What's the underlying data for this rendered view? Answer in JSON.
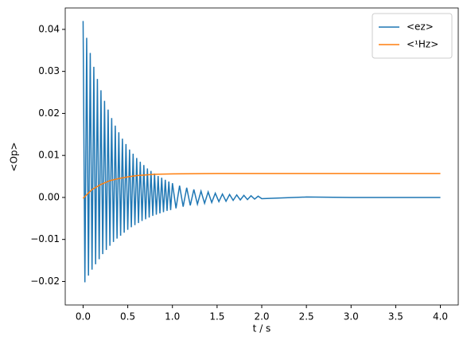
{
  "chart_data": {
    "type": "line",
    "xlabel": "t / s",
    "ylabel": "<Op>",
    "xlim": [
      -0.2,
      4.2
    ],
    "ylim": [
      -0.0256,
      0.0451
    ],
    "xticks": [
      {
        "value": 0,
        "label": "0.0"
      },
      {
        "value": 0.5,
        "label": "0.5"
      },
      {
        "value": 1,
        "label": "1.0"
      },
      {
        "value": 1.5,
        "label": "1.5"
      },
      {
        "value": 2,
        "label": "2.0"
      },
      {
        "value": 2.5,
        "label": "2.5"
      },
      {
        "value": 3,
        "label": "3.0"
      },
      {
        "value": 3.5,
        "label": "3.5"
      },
      {
        "value": 4,
        "label": "4.0"
      }
    ],
    "yticks": [
      {
        "value": -0.02,
        "label": "−0.02"
      },
      {
        "value": -0.01,
        "label": "−0.01"
      },
      {
        "value": 0,
        "label": "0.00"
      },
      {
        "value": 0.01,
        "label": "0.01"
      },
      {
        "value": 0.02,
        "label": "0.02"
      },
      {
        "value": 0.03,
        "label": "0.03"
      },
      {
        "value": 0.04,
        "label": "0.04"
      }
    ],
    "grid": false,
    "legend": "upper right",
    "series": [
      {
        "name": "<ez>",
        "color": "#1f77b4",
        "x": [
          0,
          0.02,
          0.04,
          0.06,
          0.08,
          0.1,
          0.12,
          0.14,
          0.16,
          0.18,
          0.2,
          0.22,
          0.24,
          0.26,
          0.28,
          0.3,
          0.32,
          0.34,
          0.36,
          0.38,
          0.4,
          0.42,
          0.44,
          0.46,
          0.48,
          0.5,
          0.52,
          0.54,
          0.56,
          0.58,
          0.6,
          0.62,
          0.64,
          0.66,
          0.68,
          0.7,
          0.72,
          0.74,
          0.76,
          0.78,
          0.8,
          0.82,
          0.84,
          0.86,
          0.88,
          0.9,
          0.92,
          0.94,
          0.96,
          0.98,
          1.0,
          1.04,
          1.08,
          1.12,
          1.16,
          1.2,
          1.24,
          1.28,
          1.32,
          1.36,
          1.4,
          1.44,
          1.48,
          1.52,
          1.56,
          1.6,
          1.64,
          1.68,
          1.72,
          1.76,
          1.8,
          1.84,
          1.88,
          1.92,
          1.96,
          2.0,
          2.5,
          3.0,
          4.0
        ],
        "values": [
          0.042,
          -0.0202,
          0.038,
          -0.0186,
          0.0344,
          -0.0172,
          0.0311,
          -0.0159,
          0.0282,
          -0.0147,
          0.0255,
          -0.0135,
          0.023,
          -0.0125,
          0.0209,
          -0.0115,
          0.0189,
          -0.0106,
          0.0171,
          -0.0098,
          0.0155,
          -0.0091,
          0.014,
          -0.0084,
          0.0127,
          -0.0077,
          0.0114,
          -0.0071,
          0.0104,
          -0.0066,
          0.0094,
          -0.0061,
          0.0085,
          -0.0056,
          0.0077,
          -0.0052,
          0.0069,
          -0.0048,
          0.0063,
          -0.0044,
          0.0057,
          -0.0041,
          0.0051,
          -0.0038,
          0.0047,
          -0.0035,
          0.0042,
          -0.0032,
          0.0038,
          -0.003,
          0.0034,
          -0.0026,
          0.0028,
          -0.0022,
          0.0023,
          -0.0019,
          0.0019,
          -0.0016,
          0.0015,
          -0.0014,
          0.0013,
          -0.0012,
          0.001,
          -0.001,
          0.0008,
          -0.0009,
          0.0007,
          -0.0007,
          0.0006,
          -0.0006,
          0.0005,
          -0.0005,
          0.0004,
          -0.0004,
          0.0003,
          -0.0003,
          0.0001,
          0,
          0
        ]
      },
      {
        "name": "<¹Hz>",
        "color": "#ff7f0e",
        "x": [
          0,
          0.1,
          0.2,
          0.3,
          0.4,
          0.5,
          0.6,
          0.8,
          1.0,
          1.5,
          2.0,
          3.0,
          4.0
        ],
        "values": [
          -0.0002,
          0.0019,
          0.0031,
          0.004,
          0.0045,
          0.0049,
          0.0052,
          0.0055,
          0.0056,
          0.0057,
          0.0057,
          0.0057,
          0.0057
        ]
      }
    ]
  }
}
